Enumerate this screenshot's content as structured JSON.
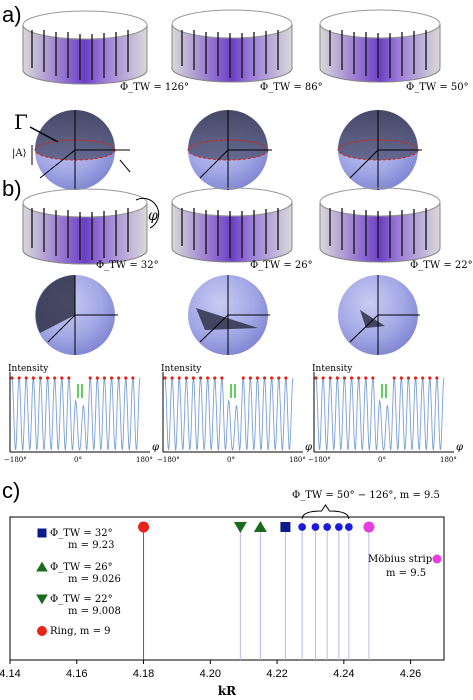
{
  "panels": {
    "a": "a)",
    "b": "b)",
    "c": "c)"
  },
  "panel_a": {
    "gamma": "Γ",
    "abs_a": "|A⟩",
    "angles": [
      "Φ_TW = 126°",
      "Φ_TW = 86°",
      "Φ_TW = 50°"
    ]
  },
  "panel_b": {
    "phi": "φ",
    "angles": [
      "Φ_TW = 32°",
      "Φ_TW = 26°",
      "Φ_TW = 22°"
    ]
  },
  "intensity_plots": {
    "ylabel": "Intensity",
    "xaxis_symbol": "φ",
    "xticks": [
      "−180°",
      "0°",
      "180°"
    ]
  },
  "chart_data": {
    "type": "scatter",
    "xlabel": "kR",
    "xlim": [
      4.14,
      4.27
    ],
    "xticks": [
      "4.14",
      "4.16",
      "4.18",
      "4.20",
      "4.22",
      "4.24",
      "4.26"
    ],
    "bracket_label": "Φ_TW = 50° − 126°,  m = 9.5",
    "series": [
      {
        "name": "Ring, m = 9",
        "marker": "circle",
        "color": "#e8241a",
        "x": [
          4.18
        ]
      },
      {
        "name": "Φ_TW = 22°  m = 9.008",
        "marker": "triangle-down",
        "color": "#1a6b1a",
        "x": [
          4.209
        ]
      },
      {
        "name": "Φ_TW = 26°  m = 9.026",
        "marker": "triangle-up",
        "color": "#1a6b1a",
        "x": [
          4.215
        ]
      },
      {
        "name": "Φ_TW = 32°  m = 9.23",
        "marker": "square",
        "color": "#0d1a8c",
        "x": [
          4.2225
        ]
      },
      {
        "name": "Φ_TW = 50° − 126°, m = 9.5",
        "marker": "circle",
        "color": "#1a1ad8",
        "x": [
          4.2275,
          4.2315,
          4.235,
          4.2385,
          4.2415
        ]
      },
      {
        "name": "Möbius strip  m = 9.5",
        "marker": "circle",
        "color": "#e83be0",
        "x": [
          4.2475
        ]
      }
    ],
    "legend": [
      {
        "marker": "square",
        "color": "#0d1a8c",
        "line1": "Φ_TW = 32°",
        "line2": "m = 9.23"
      },
      {
        "marker": "triangle-up",
        "color": "#1a6b1a",
        "line1": "Φ_TW = 26°",
        "line2": "m = 9.026"
      },
      {
        "marker": "triangle-down",
        "color": "#1a6b1a",
        "line1": "Φ_TW = 22°",
        "line2": "m = 9.008"
      },
      {
        "marker": "circle",
        "color": "#e8241a",
        "line1": "Ring, m = 9",
        "line2": ""
      }
    ],
    "mobius_label": {
      "line1": "Möbius strip",
      "line2": "m = 9.5",
      "color": "#e83be0"
    }
  }
}
